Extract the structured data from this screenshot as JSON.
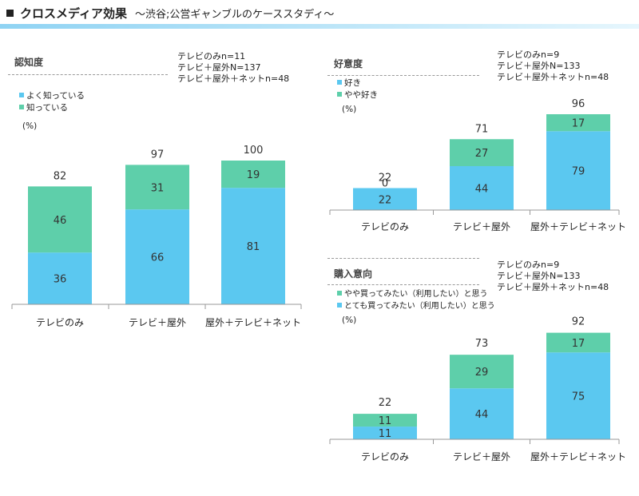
{
  "page": {
    "title": "クロスメディア効果",
    "subtitle": "～渋谷;公営ギャンブルのケーススタディ～"
  },
  "colors": {
    "primary": "#5bc8f0",
    "secondary": "#5ecfaa",
    "axis": "#999999",
    "title_rule": "#8fd3f3"
  },
  "chart_data": [
    {
      "type": "bar",
      "stacked": true,
      "title": "認知度",
      "notes": [
        "テレビのみn=11",
        "テレビ＋屋外N=137",
        "テレビ＋屋外＋ネットn=48"
      ],
      "unit": "(%)",
      "categories": [
        "テレビのみ",
        "テレビ＋屋外",
        "屋外＋テレビ＋ネット"
      ],
      "series": [
        {
          "name": "よく知っている",
          "values": [
            36,
            66,
            81
          ]
        },
        {
          "name": "知っている",
          "values": [
            46,
            31,
            19
          ]
        }
      ],
      "totals": [
        82,
        97,
        100
      ],
      "ylim": [
        0,
        100
      ],
      "legend": "top-left",
      "grid": false
    },
    {
      "type": "bar",
      "stacked": true,
      "title": "好意度",
      "notes": [
        "テレビのみn=9",
        "テレビ＋屋外N=133",
        "テレビ＋屋外＋ネットn=48"
      ],
      "unit": "(%)",
      "categories": [
        "テレビのみ",
        "テレビ＋屋外",
        "屋外＋テレビ＋ネット"
      ],
      "series": [
        {
          "name": "好き",
          "values": [
            22,
            44,
            79
          ]
        },
        {
          "name": "やや好き",
          "values": [
            0,
            27,
            17
          ]
        }
      ],
      "totals": [
        22,
        71,
        96
      ],
      "ylim": [
        0,
        100
      ],
      "legend": "top-left",
      "grid": false
    },
    {
      "type": "bar",
      "stacked": true,
      "title": "購入意向",
      "notes": [
        "テレビのみn=9",
        "テレビ＋屋外N=133",
        "テレビ＋屋外＋ネットn=48"
      ],
      "unit": "(%)",
      "categories": [
        "テレビのみ",
        "テレビ＋屋外",
        "屋外＋テレビ＋ネット"
      ],
      "series": [
        {
          "name": "とても買ってみたい（利用したい）と思う",
          "values": [
            11,
            44,
            75
          ]
        },
        {
          "name": "やや買ってみたい（利用したい）と思う",
          "values": [
            11,
            29,
            17
          ]
        }
      ],
      "legend_order": [
        1,
        0
      ],
      "totals": [
        22,
        73,
        92
      ],
      "ylim": [
        0,
        100
      ],
      "legend": "top-left",
      "grid": false
    }
  ]
}
